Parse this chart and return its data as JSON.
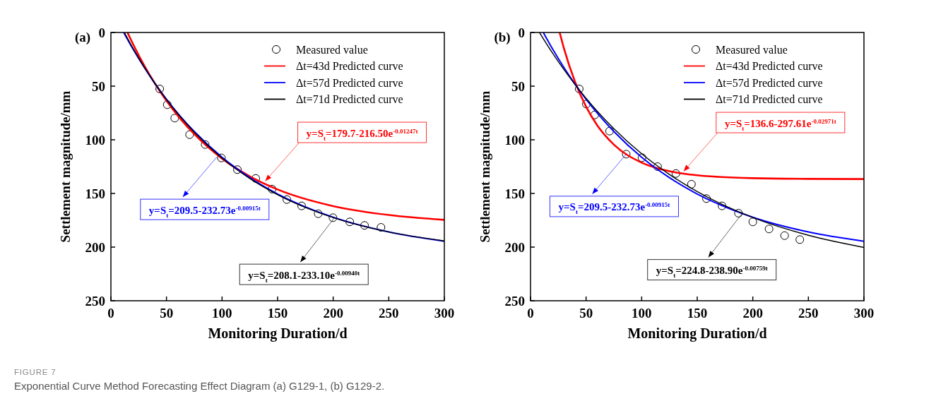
{
  "chart_data": [
    {
      "type": "line",
      "title": "(a)",
      "xlabel": "Monitoring Duration/d",
      "ylabel": "Settlement magnitude/mm",
      "xlim": [
        0,
        300
      ],
      "xticks": [
        0,
        50,
        100,
        150,
        200,
        250,
        300
      ],
      "ylim": [
        250,
        0
      ],
      "yticks": [
        0,
        50,
        100,
        150,
        200,
        250
      ],
      "grid": false,
      "legend": "top right",
      "series": [
        {
          "name": "Measured value",
          "type": "scatter",
          "marker": "circle",
          "color": "#000000",
          "x": [
            43.9,
            50.7,
            57.4,
            70.8,
            84.8,
            99.4,
            113.8,
            130.3,
            145,
            158.3,
            171.6,
            186.5,
            199.8,
            214.9,
            228.2,
            243
          ],
          "values": [
            52.6,
            67.3,
            79.8,
            95.2,
            104.4,
            116.9,
            127.8,
            136,
            146,
            155.7,
            161.6,
            168.9,
            172.6,
            176.5,
            179.8,
            181.6
          ]
        },
        {
          "name": "Δt=43d Predicted curve",
          "type": "line",
          "marker": "none",
          "color": "#ff0000",
          "x": [
            14.9,
            20,
            30,
            40,
            50,
            60,
            75,
            100,
            125,
            150,
            200,
            250,
            300
          ],
          "values": [
            0,
            11,
            30.8,
            48.2,
            63.6,
            77.3,
            94.7,
            117.5,
            134.1,
            146.3,
            161.8,
            170.1,
            174.6
          ]
        },
        {
          "name": "Δt=57d Predicted curve",
          "type": "line",
          "marker": "none",
          "color": "#0000ff",
          "x": [
            11.5,
            20,
            30,
            40,
            50,
            60,
            75,
            100,
            125,
            150,
            200,
            250,
            300
          ],
          "values": [
            0,
            15.7,
            32.6,
            48.1,
            62.2,
            75.1,
            92.3,
            116.3,
            135.3,
            150.5,
            172.2,
            185.9,
            194.6
          ]
        },
        {
          "name": "Δt=71d Predicted curve",
          "type": "line",
          "marker": "none",
          "color": "#000000",
          "x": [
            12.1,
            20,
            30,
            40,
            50,
            60,
            75,
            100,
            125,
            150,
            200,
            250,
            300
          ],
          "values": [
            0,
            14.9,
            32.3,
            48.1,
            62.4,
            75.5,
            92.9,
            117.1,
            136.1,
            151.2,
            172.5,
            185.9,
            194.2
          ]
        }
      ],
      "annotations": [
        {
          "text": "y=S$_{t}$=179.7-216.50e$^{-0.01247t}$",
          "x": 137,
          "y": 140.5
        },
        {
          "text": "y=S$_{t}$=209.5-232.73e$^{-0.00915t}$",
          "x": 95.2,
          "y": 116.2
        },
        {
          "text": "y=S$_{t}$=208.1-233.10e$^{-0.00940t}$",
          "x": 201,
          "y": 172.8
        },
        "FIGURE 7",
        "Exponential Curve Method Forecasting Effect Diagram (a) G129-1, (b) G129-2."
      ]
    },
    {
      "type": "line",
      "title": "(b)",
      "xlabel": "Monitoring Duration/d",
      "ylabel": "Settlement magnitude/mm",
      "xlim": [
        0,
        300
      ],
      "xticks": [
        0,
        50,
        100,
        150,
        200,
        250,
        300
      ],
      "ylim": [
        250,
        0
      ],
      "yticks": [
        0,
        50,
        100,
        150,
        200,
        250
      ],
      "grid": false,
      "legend": "top right",
      "series": [
        {
          "name": "Measured value",
          "type": "scatter",
          "marker": "circle",
          "color": "#000000",
          "x": [
            43.8,
            50.2,
            57.8,
            71.1,
            86.1,
            100.3,
            114.3,
            130.8,
            144.8,
            158.3,
            172.3,
            187.1,
            200,
            214.6,
            228.6,
            242.3
          ],
          "values": [
            52.6,
            66.7,
            76.8,
            91.9,
            113.4,
            116.7,
            125,
            131.4,
            141.4,
            154.8,
            161.6,
            168.4,
            176.5,
            183.1,
            189.3,
            193
          ]
        },
        {
          "name": "Δt=43d Predicted curve",
          "type": "line",
          "marker": "none",
          "color": "#ff0000",
          "x": [
            26.2,
            30,
            40,
            50,
            60,
            75,
            100,
            125,
            150,
            200,
            250,
            300
          ],
          "values": [
            0,
            14.5,
            45.9,
            69.2,
            86.5,
            104.5,
            121.3,
            129.3,
            133.1,
            135.8,
            136.4,
            136.6
          ]
        },
        {
          "name": "Δt=57d Predicted curve",
          "type": "line",
          "marker": "none",
          "color": "#0000ff",
          "x": [
            11.5,
            20,
            30,
            40,
            50,
            60,
            75,
            100,
            125,
            150,
            200,
            250,
            300
          ],
          "values": [
            0,
            15.7,
            32.6,
            48.1,
            62.2,
            75.1,
            92.3,
            116.3,
            135.3,
            150.5,
            172.2,
            185.9,
            194.6
          ]
        },
        {
          "name": "Δt=71d Predicted curve",
          "type": "line",
          "marker": "none",
          "color": "#000000",
          "x": [
            8,
            20,
            30,
            40,
            50,
            60,
            75,
            100,
            125,
            150,
            200,
            250,
            300
          ],
          "values": [
            0,
            19.5,
            34.5,
            48.4,
            61.3,
            73.3,
            89.6,
            113,
            132.3,
            148.3,
            172.5,
            189,
            200.3
          ]
        }
      ],
      "annotations": [
        {
          "text": "y=S$_{t}$=136.6-297.61e$^{-0.02971t}$",
          "x": 135.9,
          "y": 131.3
        },
        {
          "text": "y=S$_{t}$=209.5-232.73e$^{-0.00915t}$",
          "x": 86.1,
          "y": 113.4
        },
        {
          "text": "y=S$_{t}$=224.8-238.90e$^{-0.00759t}$",
          "x": 190.5,
          "y": 168.5
        }
      ]
    }
  ]
}
